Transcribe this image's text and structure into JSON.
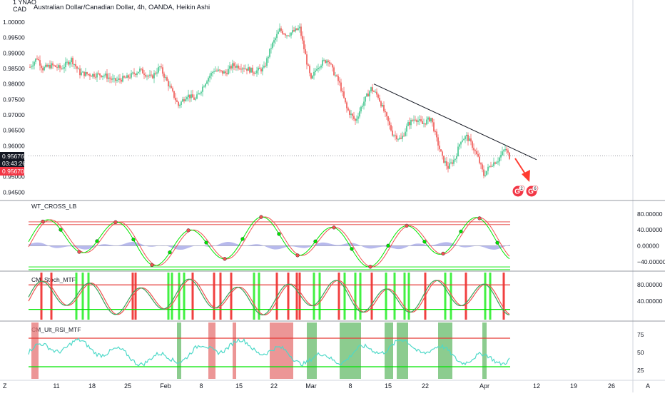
{
  "main": {
    "title": "Australian Dollar/Canadian Dollar, 4h, OANDA, Heikin Ashi",
    "corner_label_top": "1 YNAO",
    "corner_label_currency": "CAD",
    "price_ticks": [
      "1.00000",
      "0.99500",
      "0.99000",
      "0.98500",
      "0.98000",
      "0.97500",
      "0.97000",
      "0.96500",
      "0.96000",
      "0.95500",
      "0.95000",
      "0.94500"
    ],
    "last_price": "0.95676",
    "countdown": "03:43:26",
    "bid_price": "0.95670",
    "badge_1": "2",
    "badge_2": "6"
  },
  "panes": [
    {
      "name": "WT_CROSS_LB",
      "ticks": [
        "80.00000",
        "40.00000",
        "0.00000",
        "−40.00000"
      ]
    },
    {
      "name": "CM_Stoch_MTF",
      "ticks": [
        "80.00000",
        "40.00000"
      ]
    },
    {
      "name": "CM_Ult_RSI_MTF",
      "ticks": [
        "75",
        "50",
        "25"
      ]
    }
  ],
  "time_axis": {
    "labels": [
      "11",
      "18",
      "25",
      "Feb",
      "8",
      "15",
      "22",
      "Mar",
      "8",
      "15",
      "22",
      "Apr",
      "12",
      "19",
      "26"
    ],
    "corner_left": "Z",
    "corner_right": "A"
  },
  "colors": {
    "up": "#26a69a",
    "up_bright": "#3cc48a",
    "down": "#ef5350",
    "green_line": "#00e600",
    "red_line": "#e53935",
    "wt_band": "#7b7fdc",
    "rsi_line": "#4dd9c8"
  },
  "chart_data": [
    {
      "type": "candlestick",
      "title": "Australian Dollar/Canadian Dollar, 4h, OANDA, Heikin Ashi",
      "ylim": [
        0.943,
        1.003
      ],
      "x": [
        "Jan 11",
        "Jan 18",
        "Jan 25",
        "Feb",
        "Feb 8",
        "Feb 15",
        "Feb 22",
        "Mar",
        "Mar 8",
        "Mar 15",
        "Mar 22",
        "Apr",
        "Apr 12",
        "Apr 19",
        "Apr 26"
      ],
      "close_approx": [
        0.9865,
        0.9825,
        0.98,
        0.9805,
        0.976,
        0.9845,
        0.9855,
        0.9955,
        0.9855,
        0.979,
        0.9695,
        0.9595,
        0.952,
        0.9605,
        0.9567
      ],
      "trendline": {
        "from": 0.98,
        "to": 0.9555
      },
      "last_value": 0.95676
    },
    {
      "type": "line",
      "title": "WT_CROSS_LB",
      "ylim": [
        -60,
        110
      ],
      "levels": [
        60,
        53,
        -53,
        -60
      ]
    },
    {
      "type": "line",
      "title": "CM_Stoch_MTF",
      "ylim": [
        -5,
        110
      ],
      "levels": [
        80,
        20
      ]
    },
    {
      "type": "line",
      "title": "CM_Ult_RSI_MTF",
      "ylim": [
        13,
        92
      ],
      "levels": [
        70,
        30
      ]
    }
  ]
}
